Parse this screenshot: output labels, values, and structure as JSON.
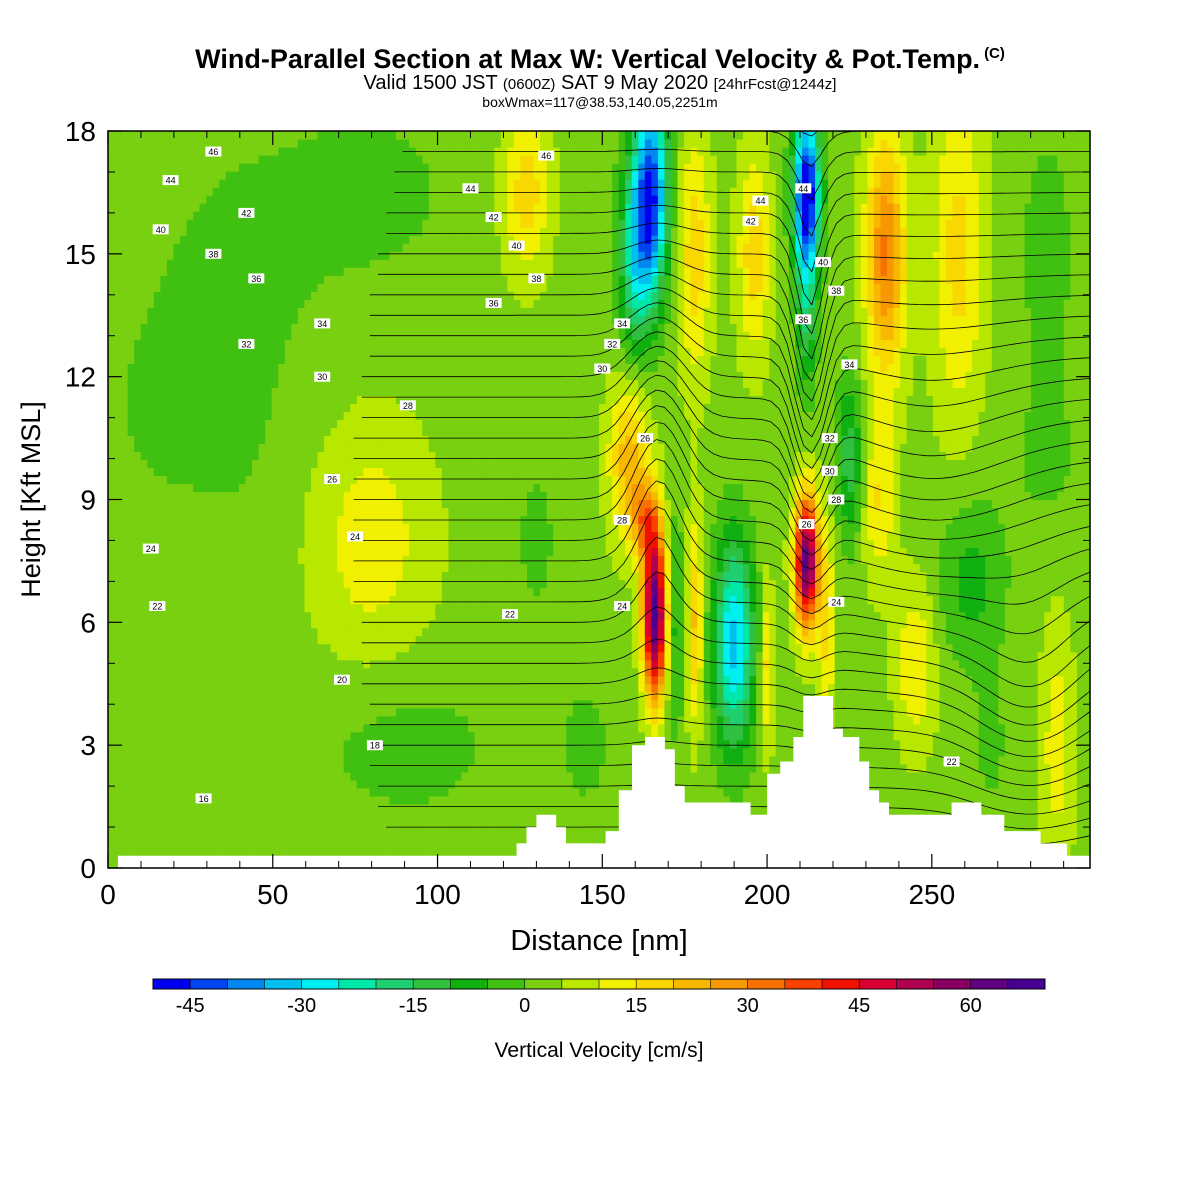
{
  "chart_data": {
    "type": "heatmap",
    "title": "Wind-Parallel Section at Max W: Vertical Velocity & Pot.Temp.",
    "title_tag": "(C)",
    "subtitle_parts": [
      "Valid 1500 JST",
      "(0600Z)",
      "SAT 9 May 2020",
      "[24hrFcst@1244z]"
    ],
    "subtitle2": "boxWmax=117@38.53,140.05,2251m",
    "xlabel": "Distance [nm]",
    "ylabel": "Height [Kft MSL]",
    "xlim": [
      0,
      298
    ],
    "ylim": [
      0,
      18
    ],
    "xticks": [
      "0",
      "50",
      "100",
      "150",
      "200",
      "250"
    ],
    "yticks": [
      "0",
      "3",
      "6",
      "9",
      "12",
      "15",
      "18"
    ],
    "colorbar": {
      "label": "Vertical Velocity [cm/s]",
      "min": -50,
      "max": 70,
      "step": 5,
      "ticks": [
        "-45",
        "-30",
        "-15",
        "0",
        "15",
        "30",
        "45",
        "60"
      ],
      "colors": [
        "#0000f0",
        "#0044f0",
        "#0088f0",
        "#00c0f0",
        "#00f0f0",
        "#00e8a8",
        "#20d070",
        "#30c040",
        "#10b010",
        "#40c010",
        "#78d010",
        "#b8e800",
        "#f0f000",
        "#f8d800",
        "#f8b800",
        "#f89800",
        "#f87000",
        "#f84000",
        "#f01000",
        "#d80030",
        "#b00050",
        "#880060",
        "#600080",
        "#480090"
      ]
    },
    "field": {
      "background_w": 3,
      "features": [
        {
          "x": 40,
          "z": 14.5,
          "sx": 30,
          "sz": 4,
          "w": -4
        },
        {
          "x": 80,
          "z": 16.5,
          "sx": 25,
          "sz": 2,
          "w": -5
        },
        {
          "x": 15,
          "z": 11,
          "sx": 20,
          "sz": 3,
          "w": -3
        },
        {
          "x": 40,
          "z": 10,
          "sx": 15,
          "sz": 3,
          "w": -2
        },
        {
          "x": 80,
          "z": 8,
          "sx": 18,
          "sz": 3,
          "w": 10
        },
        {
          "x": 90,
          "z": 3,
          "sx": 30,
          "sz": 2,
          "w": -5
        },
        {
          "x": 20,
          "z": 4,
          "sx": 15,
          "sz": 2,
          "w": -2
        },
        {
          "x": 130,
          "z": 8,
          "sx": 8,
          "sz": 2.5,
          "w": -4
        },
        {
          "x": 145,
          "z": 3,
          "sx": 10,
          "sz": 2,
          "w": -4
        },
        {
          "x": 127,
          "z": 16.5,
          "sx": 7,
          "sz": 2,
          "w": 15
        },
        {
          "x": 158,
          "z": 10,
          "sx": 6,
          "sz": 2,
          "w": 20
        },
        {
          "x": 166,
          "z": 6.2,
          "sx": 3.5,
          "sz": 2,
          "w": 65
        },
        {
          "x": 163,
          "z": 8.5,
          "sx": 4,
          "sz": 1,
          "w": 22
        },
        {
          "x": 172,
          "z": 6,
          "sx": 3,
          "sz": 2.5,
          "w": -12
        },
        {
          "x": 178,
          "z": 6,
          "sx": 2.5,
          "sz": 2.5,
          "w": 18
        },
        {
          "x": 190,
          "z": 5.5,
          "sx": 6,
          "sz": 2.5,
          "w": -35
        },
        {
          "x": 200,
          "z": 5,
          "sx": 2,
          "sz": 2,
          "w": 15
        },
        {
          "x": 212,
          "z": 7.5,
          "sx": 3.5,
          "sz": 1.6,
          "w": 60
        },
        {
          "x": 218,
          "z": 6,
          "sx": 2.5,
          "sz": 2.5,
          "w": 14
        },
        {
          "x": 225,
          "z": 10,
          "sx": 4,
          "sz": 2,
          "w": -16
        },
        {
          "x": 234,
          "z": 9,
          "sx": 5,
          "sz": 2,
          "w": 12
        },
        {
          "x": 212,
          "z": 16.5,
          "sx": 4,
          "sz": 2,
          "w": -55
        },
        {
          "x": 212,
          "z": 13.5,
          "sx": 3,
          "sz": 2,
          "w": -15
        },
        {
          "x": 165,
          "z": 16.5,
          "sx": 5,
          "sz": 2.5,
          "w": -45
        },
        {
          "x": 160,
          "z": 15,
          "sx": 5,
          "sz": 2.5,
          "w": -25
        },
        {
          "x": 178,
          "z": 15,
          "sx": 5,
          "sz": 3,
          "w": 15
        },
        {
          "x": 196,
          "z": 15,
          "sx": 5,
          "sz": 2.5,
          "w": 15
        },
        {
          "x": 236,
          "z": 15,
          "sx": 6,
          "sz": 3,
          "w": 28
        },
        {
          "x": 258,
          "z": 15,
          "sx": 8,
          "sz": 4,
          "w": 14
        },
        {
          "x": 285,
          "z": 15,
          "sx": 8,
          "sz": 3,
          "w": -6
        },
        {
          "x": 285,
          "z": 10,
          "sx": 12,
          "sz": 2,
          "w": -4
        },
        {
          "x": 262,
          "z": 7,
          "sx": 10,
          "sz": 2,
          "w": -10
        },
        {
          "x": 245,
          "z": 5,
          "sx": 6,
          "sz": 2,
          "w": 12
        },
        {
          "x": 288,
          "z": 3,
          "sx": 5,
          "sz": 3,
          "w": 10
        },
        {
          "x": 268,
          "z": 3,
          "sx": 6,
          "sz": 2,
          "w": -4
        }
      ],
      "theta_base_K": 10,
      "theta_lapse_K_per_kft": 2,
      "theta_perturbations": [
        {
          "x": 167,
          "z": 10,
          "sx": 10,
          "sz": 4,
          "a": -4
        },
        {
          "x": 213,
          "z": 12,
          "sx": 6,
          "sz": 5,
          "a": 5
        },
        {
          "x": 250,
          "z": 9,
          "sx": 30,
          "sz": 4,
          "a": 2
        },
        {
          "x": 280,
          "z": 4,
          "sx": 20,
          "sz": 3,
          "a": 3
        }
      ]
    },
    "contour_levels": [
      12,
      13,
      14,
      15,
      16,
      17,
      18,
      19,
      20,
      21,
      22,
      23,
      24,
      25,
      26,
      27,
      28,
      29,
      30,
      31,
      32,
      33,
      34,
      35,
      36,
      37,
      38,
      39,
      40,
      41,
      42,
      43,
      44,
      45,
      46,
      47
    ],
    "contour_labels": [
      {
        "x": 32,
        "z": 17.5,
        "text": "46"
      },
      {
        "x": 19,
        "z": 16.8,
        "text": "44"
      },
      {
        "x": 42,
        "z": 16.0,
        "text": "42"
      },
      {
        "x": 16,
        "z": 15.6,
        "text": "40"
      },
      {
        "x": 32,
        "z": 15.0,
        "text": "38"
      },
      {
        "x": 45,
        "z": 14.4,
        "text": "36"
      },
      {
        "x": 65,
        "z": 13.3,
        "text": "34"
      },
      {
        "x": 42,
        "z": 12.8,
        "text": "32"
      },
      {
        "x": 65,
        "z": 12.0,
        "text": "30"
      },
      {
        "x": 91,
        "z": 11.3,
        "text": "28"
      },
      {
        "x": 68,
        "z": 9.5,
        "text": "26"
      },
      {
        "x": 75,
        "z": 8.1,
        "text": "24"
      },
      {
        "x": 13,
        "z": 7.8,
        "text": "24"
      },
      {
        "x": 15,
        "z": 6.4,
        "text": "22"
      },
      {
        "x": 71,
        "z": 4.6,
        "text": "20"
      },
      {
        "x": 81,
        "z": 3.0,
        "text": "18"
      },
      {
        "x": 29,
        "z": 1.7,
        "text": "16"
      },
      {
        "x": 133,
        "z": 17.4,
        "text": "46"
      },
      {
        "x": 110,
        "z": 16.6,
        "text": "44"
      },
      {
        "x": 117,
        "z": 15.9,
        "text": "42"
      },
      {
        "x": 124,
        "z": 15.2,
        "text": "40"
      },
      {
        "x": 130,
        "z": 14.4,
        "text": "38"
      },
      {
        "x": 117,
        "z": 13.8,
        "text": "36"
      },
      {
        "x": 156,
        "z": 13.3,
        "text": "34"
      },
      {
        "x": 153,
        "z": 12.8,
        "text": "32"
      },
      {
        "x": 150,
        "z": 12.2,
        "text": "30"
      },
      {
        "x": 163,
        "z": 10.5,
        "text": "26"
      },
      {
        "x": 156,
        "z": 8.5,
        "text": "28"
      },
      {
        "x": 156,
        "z": 6.4,
        "text": "24"
      },
      {
        "x": 122,
        "z": 6.2,
        "text": "22"
      },
      {
        "x": 198,
        "z": 16.3,
        "text": "44"
      },
      {
        "x": 211,
        "z": 16.6,
        "text": "44"
      },
      {
        "x": 195,
        "z": 15.8,
        "text": "42"
      },
      {
        "x": 217,
        "z": 14.8,
        "text": "40"
      },
      {
        "x": 221,
        "z": 14.1,
        "text": "38"
      },
      {
        "x": 211,
        "z": 13.4,
        "text": "36"
      },
      {
        "x": 225,
        "z": 12.3,
        "text": "34"
      },
      {
        "x": 219,
        "z": 10.5,
        "text": "32"
      },
      {
        "x": 219,
        "z": 9.7,
        "text": "30"
      },
      {
        "x": 221,
        "z": 9.0,
        "text": "28"
      },
      {
        "x": 212,
        "z": 8.4,
        "text": "26"
      },
      {
        "x": 221,
        "z": 6.5,
        "text": "24"
      },
      {
        "x": 256,
        "z": 2.6,
        "text": "22"
      }
    ],
    "terrain": [
      [
        0,
        0
      ],
      [
        3,
        0
      ],
      [
        3,
        0.3
      ],
      [
        124,
        0.3
      ],
      [
        124,
        0.6
      ],
      [
        127,
        0.6
      ],
      [
        127,
        1.0
      ],
      [
        130,
        1.0
      ],
      [
        130,
        1.3
      ],
      [
        136,
        1.3
      ],
      [
        136,
        1.0
      ],
      [
        139,
        1.0
      ],
      [
        139,
        0.6
      ],
      [
        151,
        0.6
      ],
      [
        151,
        0.9
      ],
      [
        155,
        0.9
      ],
      [
        155,
        1.9
      ],
      [
        159,
        1.9
      ],
      [
        159,
        3.0
      ],
      [
        163,
        3.0
      ],
      [
        163,
        3.2
      ],
      [
        169,
        3.2
      ],
      [
        169,
        2.9
      ],
      [
        172,
        2.9
      ],
      [
        172,
        2.0
      ],
      [
        175,
        2.0
      ],
      [
        175,
        1.6
      ],
      [
        195,
        1.6
      ],
      [
        195,
        1.3
      ],
      [
        200,
        1.3
      ],
      [
        200,
        2.3
      ],
      [
        204,
        2.3
      ],
      [
        204,
        2.6
      ],
      [
        208,
        2.6
      ],
      [
        208,
        3.2
      ],
      [
        211,
        3.2
      ],
      [
        211,
        4.2
      ],
      [
        220,
        4.2
      ],
      [
        220,
        3.4
      ],
      [
        223,
        3.4
      ],
      [
        223,
        3.2
      ],
      [
        228,
        3.2
      ],
      [
        228,
        2.6
      ],
      [
        231,
        2.6
      ],
      [
        231,
        1.9
      ],
      [
        234,
        1.9
      ],
      [
        234,
        1.6
      ],
      [
        237,
        1.6
      ],
      [
        237,
        1.3
      ],
      [
        256,
        1.3
      ],
      [
        256,
        1.6
      ],
      [
        265,
        1.6
      ],
      [
        265,
        1.3
      ],
      [
        272,
        1.3
      ],
      [
        272,
        0.9
      ],
      [
        283,
        0.9
      ],
      [
        283,
        0.6
      ],
      [
        291,
        0.6
      ],
      [
        291,
        0.3
      ],
      [
        298,
        0.3
      ],
      [
        298,
        0
      ]
    ]
  }
}
